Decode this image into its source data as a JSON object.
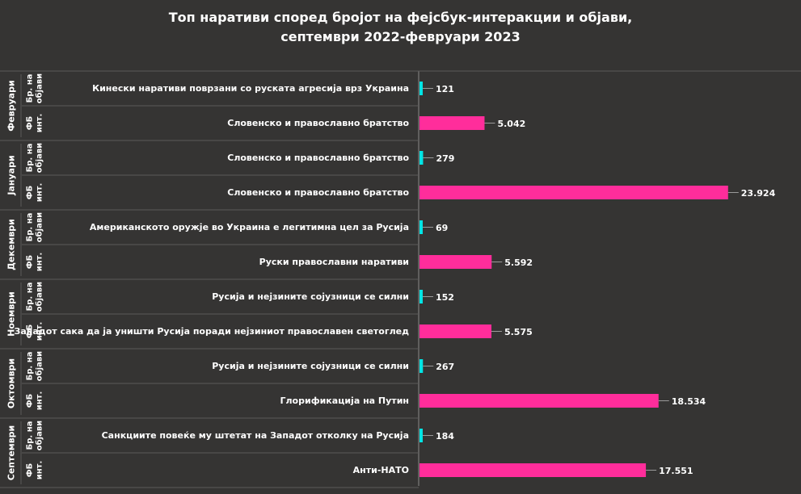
{
  "chart_data": {
    "type": "bar",
    "orientation": "horizontal",
    "title": "Топ наративи според бројот на фејсбук-интеракции и објави,",
    "subtitle": "септември 2022-февруари 2023",
    "metric_labels": {
      "posts": [
        "Бр. на",
        "објави"
      ],
      "fb": [
        "ФБ",
        "инт."
      ]
    },
    "colors": {
      "posts": "#00e5e5",
      "fb": "#ff2d9b"
    },
    "xlim": [
      0,
      24000
    ],
    "groups": [
      {
        "month": "Февруари",
        "rows": [
          {
            "metric": "posts",
            "label": "Кинески наративи поврзани со руската агресија врз Украина",
            "value": 121,
            "value_label": "121"
          },
          {
            "metric": "fb",
            "label": "Словенско и православно братство",
            "value": 5042,
            "value_label": "5.042"
          }
        ]
      },
      {
        "month": "Јануари",
        "rows": [
          {
            "metric": "posts",
            "label": "Словенско и православно братство",
            "value": 279,
            "value_label": "279"
          },
          {
            "metric": "fb",
            "label": "Словенско и православно братство",
            "value": 23924,
            "value_label": "23.924"
          }
        ]
      },
      {
        "month": "Декември",
        "rows": [
          {
            "metric": "posts",
            "label": "Американското оружје во Украина е легитимна цел за Русија",
            "value": 69,
            "value_label": "69"
          },
          {
            "metric": "fb",
            "label": "Руски православни наративи",
            "value": 5592,
            "value_label": "5.592"
          }
        ]
      },
      {
        "month": "Ноември",
        "rows": [
          {
            "metric": "posts",
            "label": "Русија и нејзините сојузници се силни",
            "value": 152,
            "value_label": "152"
          },
          {
            "metric": "fb",
            "label": "Западот сака да ја уништи Русија поради нејзиниот православен светоглед",
            "value": 5575,
            "value_label": "5.575"
          }
        ]
      },
      {
        "month": "Октомври",
        "rows": [
          {
            "metric": "posts",
            "label": "Русија и нејзините сојузници се силни",
            "value": 267,
            "value_label": "267"
          },
          {
            "metric": "fb",
            "label": "Глорификација на Путин",
            "value": 18534,
            "value_label": "18.534"
          }
        ]
      },
      {
        "month": "Септември",
        "rows": [
          {
            "metric": "posts",
            "label": "Санкциите повеќе му штетат на Западот отколку на Русија",
            "value": 184,
            "value_label": "184"
          },
          {
            "metric": "fb",
            "label": "Анти-НАТО",
            "value": 17551,
            "value_label": "17.551"
          }
        ]
      }
    ]
  }
}
